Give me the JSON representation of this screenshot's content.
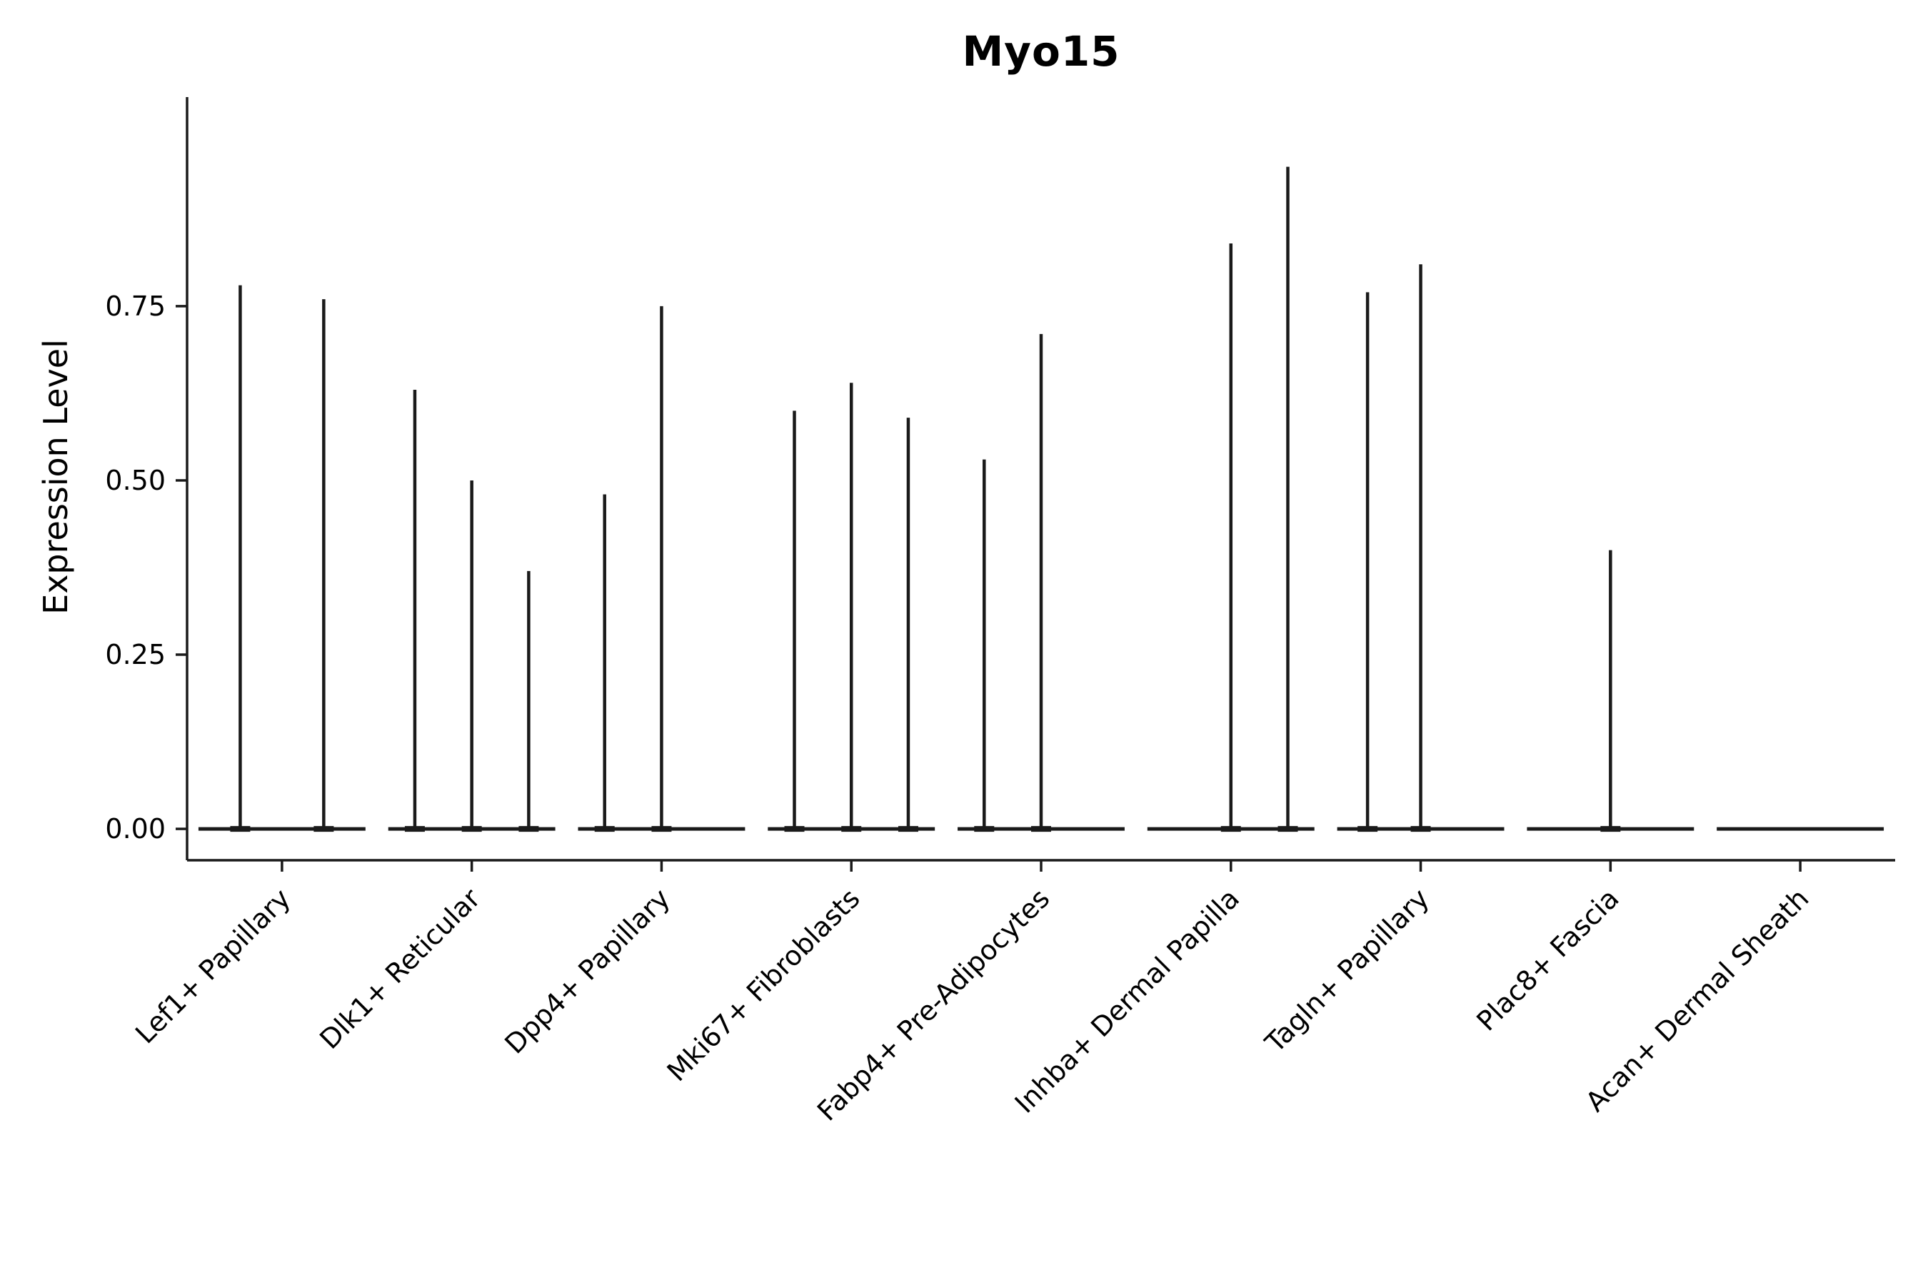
{
  "figure": {
    "background": "#ffffff",
    "line_color": "#1a1a1a",
    "text_color": "#000000"
  },
  "chart_data": {
    "type": "violin",
    "title": "Myo15",
    "ylabel": "Expression Level",
    "xlabel": "",
    "grid": false,
    "legend": "none",
    "ylim": [
      -0.045,
      1.05
    ],
    "ytick_labels": [
      "0.00",
      "0.25",
      "0.50",
      "0.75"
    ],
    "ytick_values": [
      0.0,
      0.25,
      0.5,
      0.75
    ],
    "categories": [
      "Lef1+ Papillary",
      "Dlk1+ Reticular",
      "Dpp4+ Papillary",
      "Mki67+ Fibroblasts",
      "Fabp4+ Pre-Adipocytes",
      "Inhba+ Dermal Papilla",
      "Tagln+ Papillary",
      "Plac8+ Fascia",
      "Acan+ Dermal Sheath"
    ],
    "baseline_half_width": 0.44,
    "groups": [
      {
        "category": "Lef1+ Papillary",
        "spikes": [
          {
            "dx": -0.22,
            "max": 0.78
          },
          {
            "dx": 0.22,
            "max": 0.76
          }
        ]
      },
      {
        "category": "Dlk1+ Reticular",
        "spikes": [
          {
            "dx": -0.3,
            "max": 0.63
          },
          {
            "dx": 0.0,
            "max": 0.5
          },
          {
            "dx": 0.3,
            "max": 0.37
          }
        ]
      },
      {
        "category": "Dpp4+ Papillary",
        "spikes": [
          {
            "dx": -0.3,
            "max": 0.48
          },
          {
            "dx": 0.0,
            "max": 0.75
          }
        ]
      },
      {
        "category": "Mki67+ Fibroblasts",
        "spikes": [
          {
            "dx": -0.3,
            "max": 0.6
          },
          {
            "dx": 0.0,
            "max": 0.64
          },
          {
            "dx": 0.3,
            "max": 0.59
          }
        ]
      },
      {
        "category": "Fabp4+ Pre-Adipocytes",
        "spikes": [
          {
            "dx": -0.3,
            "max": 0.53
          },
          {
            "dx": 0.0,
            "max": 0.71
          }
        ]
      },
      {
        "category": "Inhba+ Dermal Papilla",
        "spikes": [
          {
            "dx": 0.0,
            "max": 0.84
          },
          {
            "dx": 0.3,
            "max": 0.95
          }
        ]
      },
      {
        "category": "Tagln+ Papillary",
        "spikes": [
          {
            "dx": -0.28,
            "max": 0.77
          },
          {
            "dx": 0.0,
            "max": 0.81
          }
        ]
      },
      {
        "category": "Plac8+ Fascia",
        "spikes": [
          {
            "dx": 0.0,
            "max": 0.4
          }
        ]
      },
      {
        "category": "Acan+ Dermal Sheath",
        "spikes": []
      }
    ]
  }
}
